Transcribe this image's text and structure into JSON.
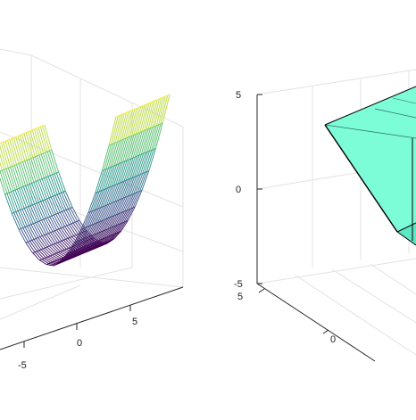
{
  "chart_data": [
    {
      "type": "surface-mesh",
      "colormap": [
        "#440154",
        "#3b528b",
        "#21918c",
        "#5ec962",
        "#fde725"
      ],
      "x_ticks": [
        "-5",
        "0",
        "5"
      ],
      "y_ticks": [],
      "z_ticks": [],
      "grid": true
    },
    {
      "type": "3d-polyhedron",
      "face_color": "#7dfcd8",
      "edge_color": "#000000",
      "z_ticks": [
        "5",
        "0",
        "-5"
      ],
      "y_ticks": [
        "5",
        "0"
      ],
      "grid": true
    }
  ]
}
